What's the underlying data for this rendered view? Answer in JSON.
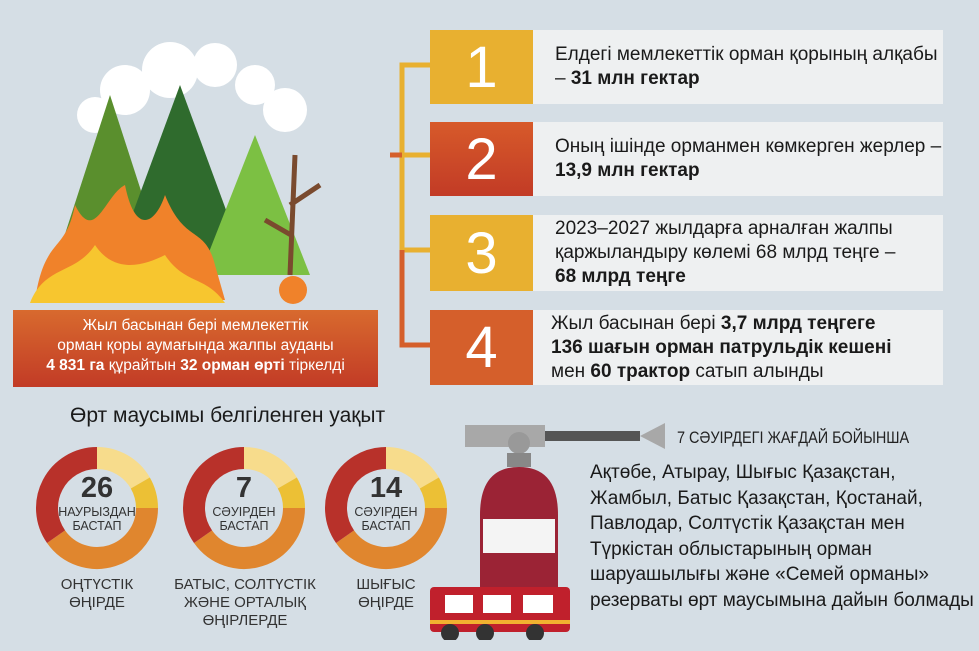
{
  "summary": {
    "line1": "Жыл басынан бері мемлекеттік",
    "line2": "орман қоры аумағында жалпы ауданы",
    "area": "4 831 га",
    "mid": " құрайтын ",
    "fires": "32 орман өрті",
    "end": " тіркелді"
  },
  "facts": [
    {
      "number": "1",
      "color": "#e8b030",
      "text": "Елдегі мемлекеттік орман қорының алқабы – ",
      "bold": "31 млн гектар"
    },
    {
      "number": "2",
      "color": "#c8452b",
      "text": "Оның ішінде орманмен көмкерген жерлер – ",
      "bold": "13,9 млн гектар"
    },
    {
      "number": "3",
      "color": "#e8b030",
      "text": "2023–2027 жылдарға арналған жалпы қаржыландыру көлемі 68 млрд теңге – ",
      "bold": "68 млрд теңге"
    },
    {
      "number": "4",
      "color": "#d55f2b",
      "p1": "Жыл басынан бері ",
      "b1": "3,7 млрд теңгеге",
      "b2": "136 шағын орман патрульдік кешені",
      "p2": "мен ",
      "b3": "60 трактор",
      "p3": " сатып алынды"
    }
  ],
  "season": {
    "title": "Өрт маусымы белгіленген уақыт",
    "items": [
      {
        "value": "26",
        "sub1": "НАУРЫЗДАН",
        "sub2": "БАСТАП",
        "region": [
          "ОҢТҮСТІК",
          "ӨҢІРДЕ"
        ]
      },
      {
        "value": "7",
        "sub1": "СӘУІРДЕН",
        "sub2": "БАСТАП",
        "region": [
          "БАТЫС, СОЛТҮСТІК",
          "ЖӘНЕ ОРТАЛЫҚ",
          "ӨҢІРЛЕРДЕ"
        ]
      },
      {
        "value": "14",
        "sub1": "СӘУІРДЕН",
        "sub2": "БАСТАП",
        "region": [
          "ШЫҒЫС",
          "ӨҢІРДЕ"
        ]
      }
    ],
    "colors": {
      "red": "#b8312a",
      "orange": "#e0862e",
      "yellow": "#ecc035",
      "pale": "#f7dc8c"
    }
  },
  "status": {
    "title": "7 СӘУІРДЕГІ ЖАҒДАЙ БОЙЫНША",
    "text": "Ақтөбе, Атырау, Шығыс Қазақстан, Жамбыл, Батыс Қазақстан, Қостанай, Павлодар, Солтүстік Қазақстан мен Түркістан облыстарының орман шаруашылығы және «Семей орманы» резерваты өрт маусымына дайын болмады"
  }
}
